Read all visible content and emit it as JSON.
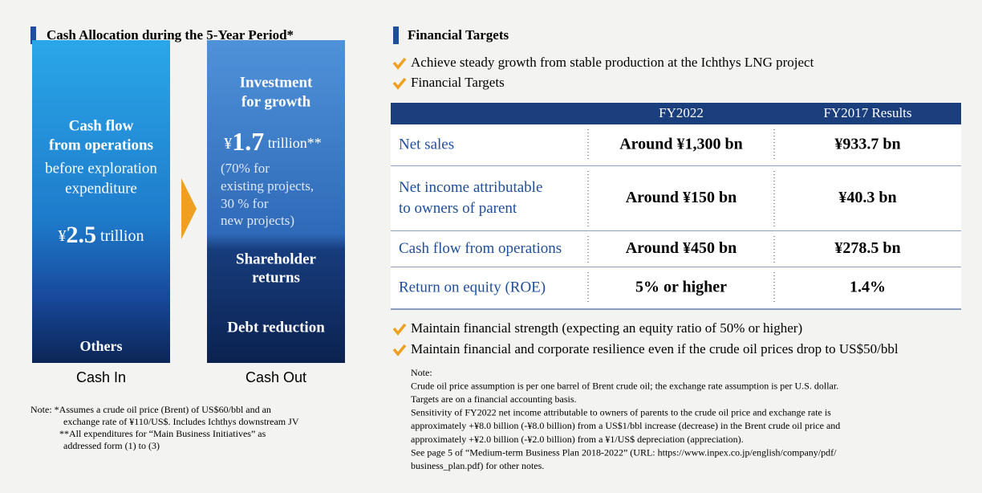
{
  "cash_allocation": {
    "title": "Cash Allocation during the 5-Year Period*",
    "cash_in": {
      "heading": [
        "Cash flow",
        "from operations"
      ],
      "subtext": [
        "before exploration",
        "expenditure"
      ],
      "amount": {
        "currency": "¥",
        "number": "2.5",
        "unit": " trillion"
      },
      "others": "Others",
      "label": "Cash In"
    },
    "cash_out": {
      "investment": [
        "Investment",
        "for growth"
      ],
      "amount": {
        "currency": "¥",
        "number": "1.7",
        "unit": " trillion**"
      },
      "breakdown": [
        "(70% for",
        "existing projects,",
        "30 % for",
        "new projects)"
      ],
      "shareholder": [
        "Shareholder",
        "returns"
      ],
      "debt": "Debt reduction",
      "label": "Cash Out"
    },
    "notes": [
      "Note: *Assumes a crude oil price (Brent) of US$60/bbl and an",
      "exchange rate of ¥110/US$. Includes Ichthys downstream JV",
      "**All expenditures for “Main Business Initiatives” as",
      "addressed form (1) to (3)"
    ]
  },
  "financial_targets": {
    "title": "Financial Targets",
    "bullets_top": [
      "Achieve steady growth from stable production at the Ichthys LNG project",
      "Financial Targets"
    ],
    "table": {
      "headers": [
        "FY2022",
        "FY2017 Results"
      ],
      "rows": [
        {
          "label": [
            "Net sales"
          ],
          "values": [
            "Around ¥1,300 bn",
            "¥933.7 bn"
          ]
        },
        {
          "label": [
            "Net income attributable",
            "to owners of parent"
          ],
          "values": [
            "Around ¥150 bn",
            "¥40.3 bn"
          ]
        },
        {
          "label": [
            "Cash flow from operations"
          ],
          "values": [
            "Around ¥450 bn",
            "¥278.5 bn"
          ]
        },
        {
          "label": [
            "Return on equity (ROE)"
          ],
          "values": [
            "5% or higher",
            "1.4%"
          ]
        }
      ]
    },
    "bullets_bottom": [
      "Maintain financial strength (expecting an equity ratio of 50% or higher)",
      "Maintain financial and corporate resilience even if the crude oil prices drop to US$50/bbl"
    ],
    "notes": [
      "Note:",
      "Crude oil price assumption is per one barrel of Brent crude oil; the exchange rate assumption is per U.S. dollar.",
      "Targets are on a financial accounting basis.",
      "Sensitivity of FY2022 net income attributable to owners of parents to the crude oil price and exchange rate is",
      "approximately +¥8.0 billion (-¥8.0 billion) from a US$1/bbl increase (decrease) in the Brent crude oil price and",
      "approximately +¥2.0 billion (-¥2.0 billion) from a ¥1/US$ depreciation (appreciation).",
      "See page 5 of “Medium-term Business Plan 2018-2022” (URL: https://www.inpex.co.jp/english/company/pdf/",
      "business_plan.pdf) for other notes."
    ]
  }
}
